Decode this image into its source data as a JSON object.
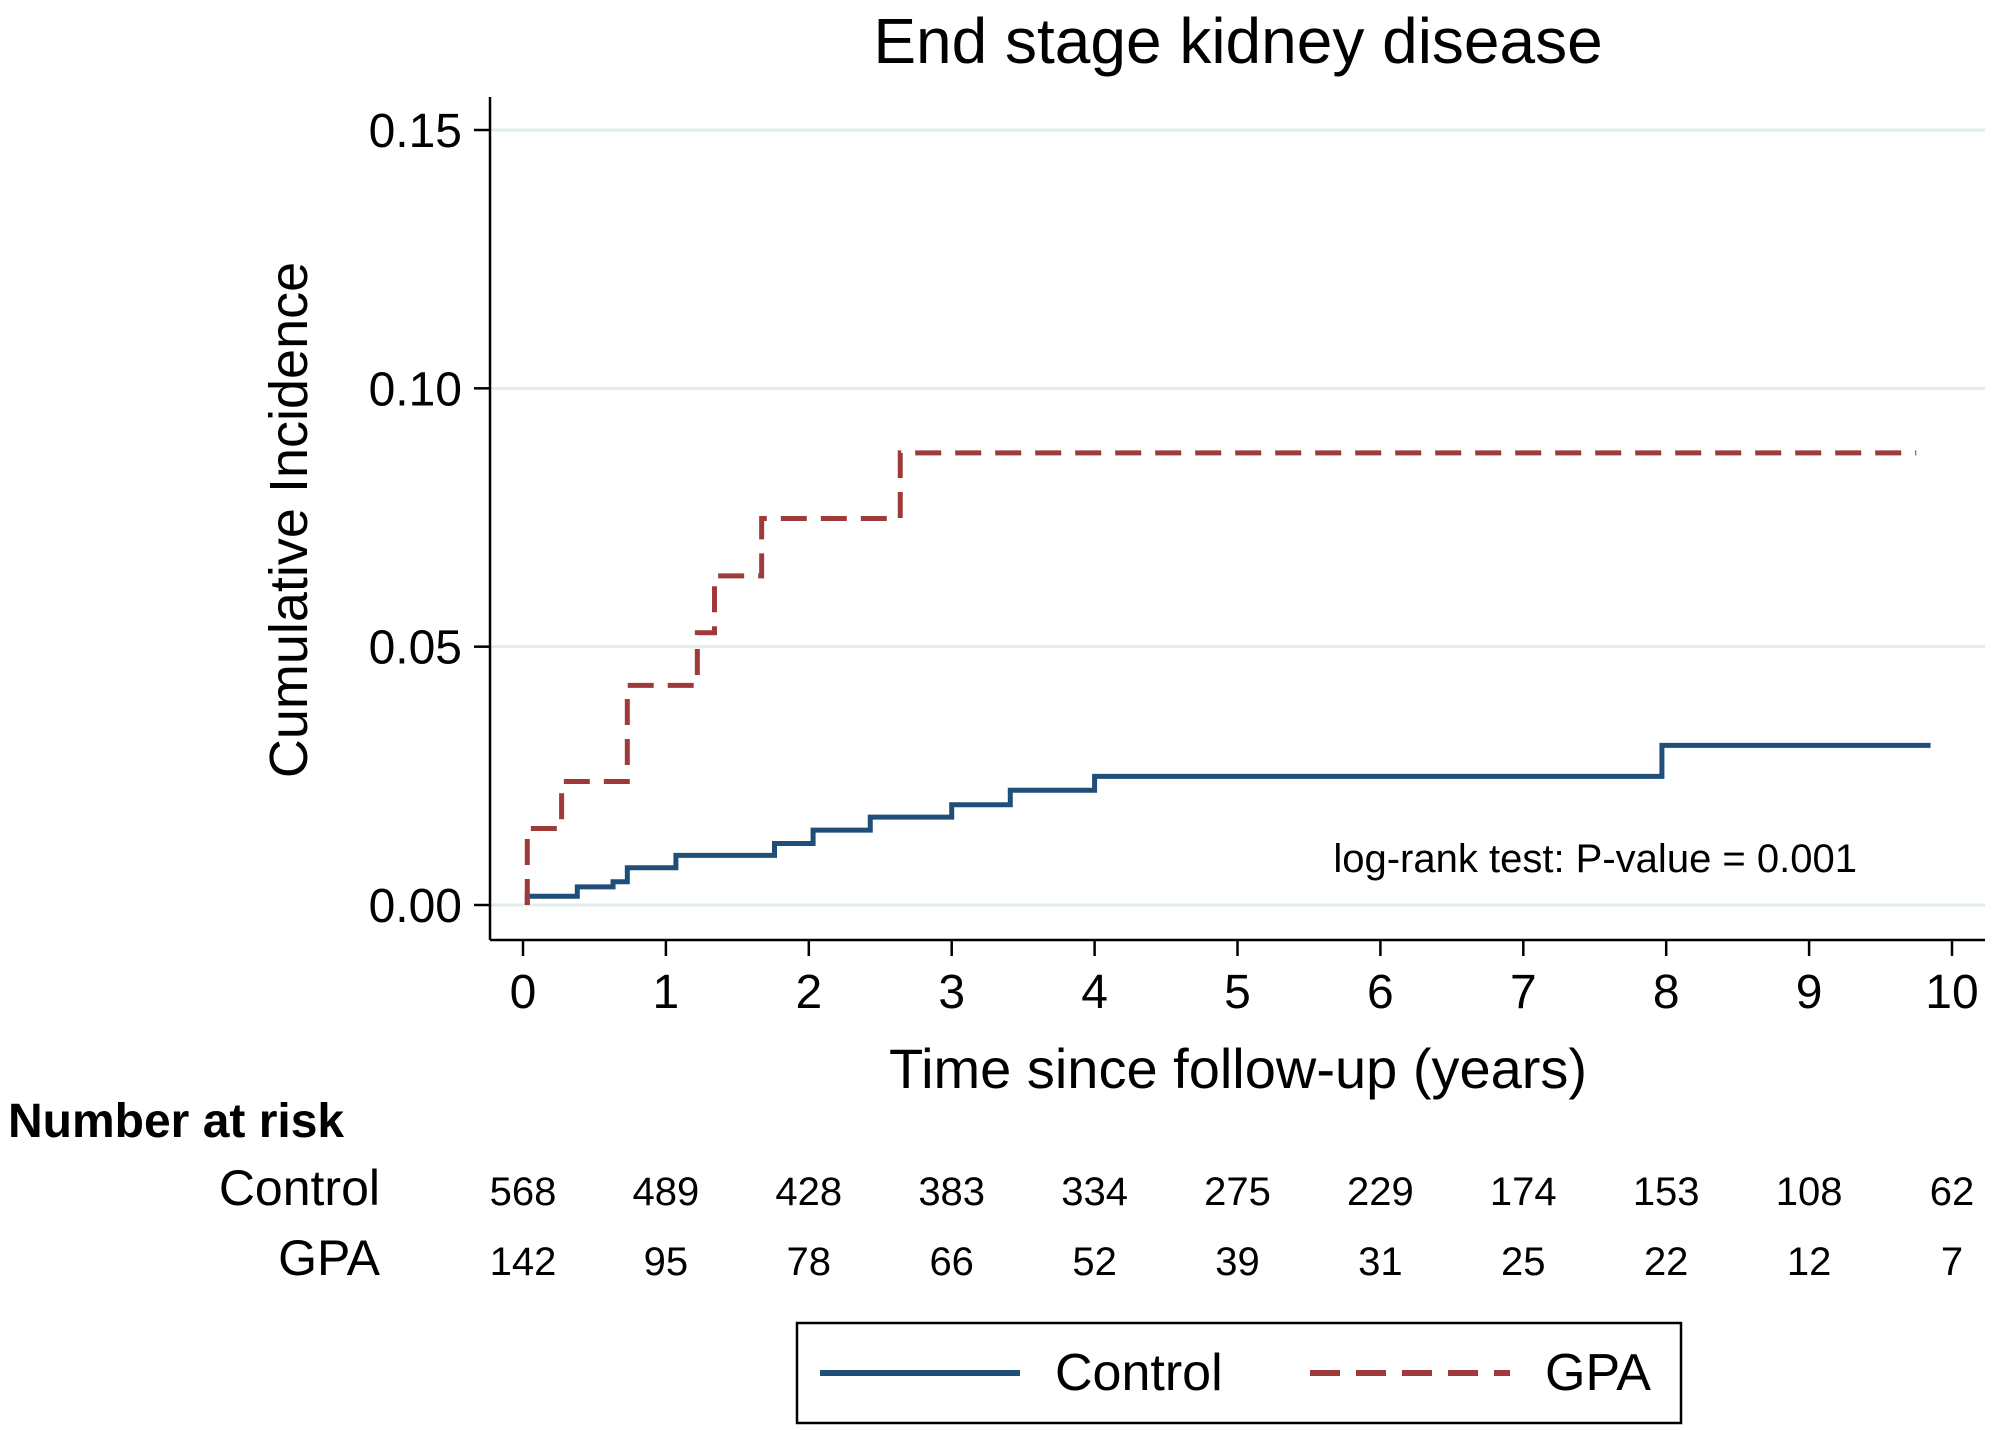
{
  "chart_data": {
    "type": "line",
    "title": "End stage kidney disease",
    "xlabel": "Time since follow-up (years)",
    "ylabel": "Cumulative Incidence",
    "xlim": [
      0,
      10
    ],
    "ylim": [
      0,
      0.15
    ],
    "xticks": [
      0,
      1,
      2,
      3,
      4,
      5,
      6,
      7,
      8,
      9,
      10
    ],
    "yticks": [
      0,
      0.05,
      0.1,
      0.15
    ],
    "ytick_labels": [
      "0.00",
      "0.05",
      "0.10",
      "0.15"
    ],
    "grid": "horizontal",
    "annotation": "log-rank test: P-value = 0.001",
    "series": [
      {
        "name": "Control",
        "color": "#1f4e79",
        "style": "solid",
        "steps": [
          [
            0.03,
            0.0
          ],
          [
            0.03,
            0.0017
          ],
          [
            0.38,
            0.0035
          ],
          [
            0.63,
            0.0045
          ],
          [
            0.73,
            0.0072
          ],
          [
            1.07,
            0.0096
          ],
          [
            1.76,
            0.0119
          ],
          [
            2.03,
            0.0145
          ],
          [
            2.43,
            0.017
          ],
          [
            3.0,
            0.0194
          ],
          [
            3.41,
            0.0222
          ],
          [
            4.0,
            0.0249
          ],
          [
            7.97,
            0.0309
          ],
          [
            9.85,
            0.0309
          ]
        ]
      },
      {
        "name": "GPA",
        "color": "#9e3a3a",
        "style": "dashed",
        "steps": [
          [
            0.03,
            0.0
          ],
          [
            0.03,
            0.0148
          ],
          [
            0.27,
            0.0239
          ],
          [
            0.73,
            0.0425
          ],
          [
            1.22,
            0.0527
          ],
          [
            1.34,
            0.0637
          ],
          [
            1.67,
            0.0748
          ],
          [
            2.64,
            0.0875
          ],
          [
            9.75,
            0.0875
          ]
        ]
      }
    ],
    "risk_table": {
      "title": "Number at risk",
      "times": [
        0,
        1,
        2,
        3,
        4,
        5,
        6,
        7,
        8,
        9,
        10
      ],
      "rows": [
        {
          "label": "Control",
          "values": [
            "568",
            "489",
            "428",
            "383",
            "334",
            "275",
            "229",
            "174",
            "153",
            "108",
            "62"
          ]
        },
        {
          "label": "GPA",
          "values": [
            "142",
            "95",
            "78",
            "66",
            "52",
            "39",
            "31",
            "25",
            "22",
            "12",
            "7"
          ]
        }
      ]
    },
    "legend": {
      "placement": "bottom-center",
      "entries": [
        "Control",
        "GPA"
      ]
    }
  }
}
